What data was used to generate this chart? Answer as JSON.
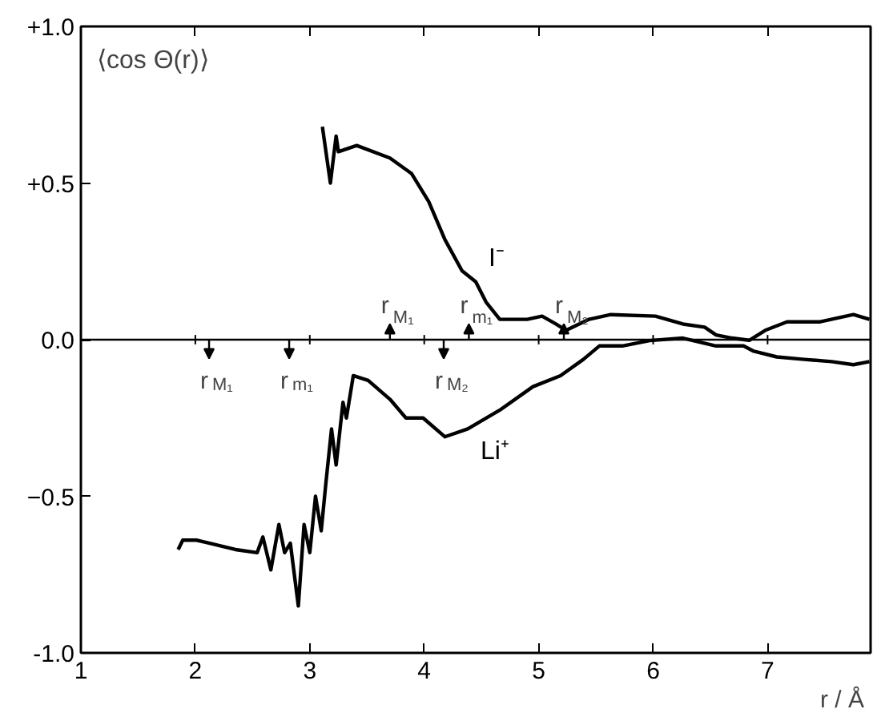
{
  "chart_data": {
    "type": "line",
    "xlabel": "r / Å",
    "ylabel": "⟨cos Θ(r)⟩",
    "xlim": [
      1,
      7.9
    ],
    "ylim": [
      -1,
      1
    ],
    "xticks": [
      1,
      2,
      3,
      4,
      5,
      6,
      7
    ],
    "yticks": [
      {
        "value": 1,
        "label": "+1.0"
      },
      {
        "value": 0.5,
        "label": "+0.5"
      },
      {
        "value": 0,
        "label": "0.0"
      },
      -0.5,
      {
        "value": -1,
        "label": "-1.0"
      }
    ],
    "grid": false,
    "marker": "none",
    "line_style": "solid",
    "ref_lines": [
      {
        "axis": "y",
        "value": 0,
        "color": "#000000"
      }
    ],
    "series": [
      {
        "name": "I⁻",
        "color": "#000000",
        "x": [
          3.11,
          3.18,
          3.23,
          3.25,
          3.41,
          3.7,
          3.89,
          4.04,
          4.18,
          4.33,
          4.45,
          4.54,
          4.66,
          4.9,
          5.03,
          5.15,
          5.24,
          5.44,
          5.63,
          6.02,
          6.26,
          6.45,
          6.55,
          6.69,
          6.84,
          6.98,
          7.17,
          7.46,
          7.75,
          7.89
        ],
        "values": [
          0.68,
          0.5,
          0.65,
          0.6,
          0.62,
          0.58,
          0.53,
          0.44,
          0.32,
          0.22,
          0.185,
          0.12,
          0.065,
          0.065,
          0.075,
          0.05,
          0.03,
          0.065,
          0.08,
          0.075,
          0.05,
          0.04,
          0.015,
          0.005,
          -0.002,
          0.03,
          0.057,
          0.057,
          0.08,
          0.065
        ]
      },
      {
        "name": "Li⁺",
        "color": "#000000",
        "x": [
          1.85,
          1.89,
          2.01,
          2.35,
          2.54,
          2.59,
          2.66,
          2.73,
          2.78,
          2.83,
          2.9,
          2.95,
          3.0,
          3.05,
          3.1,
          3.14,
          3.19,
          3.23,
          3.29,
          3.32,
          3.38,
          3.51,
          3.7,
          3.84,
          3.99,
          4.18,
          4.38,
          4.66,
          4.95,
          5.19,
          5.39,
          5.53,
          5.73,
          5.97,
          6.26,
          6.55,
          6.79,
          6.88,
          7.08,
          7.32,
          7.56,
          7.75,
          7.89
        ],
        "values": [
          -0.67,
          -0.64,
          -0.64,
          -0.67,
          -0.68,
          -0.63,
          -0.735,
          -0.59,
          -0.68,
          -0.65,
          -0.85,
          -0.59,
          -0.68,
          -0.5,
          -0.61,
          -0.46,
          -0.285,
          -0.4,
          -0.2,
          -0.25,
          -0.115,
          -0.13,
          -0.19,
          -0.25,
          -0.25,
          -0.31,
          -0.285,
          -0.225,
          -0.15,
          -0.115,
          -0.063,
          -0.02,
          -0.02,
          -0.003,
          0.005,
          -0.02,
          -0.02,
          -0.037,
          -0.055,
          -0.063,
          -0.07,
          -0.08,
          -0.07
        ]
      }
    ],
    "annotations": [
      {
        "text": "r$_{M₁}$",
        "x": 3.7,
        "y": 0
      },
      {
        "text": "r$_{m₁}$",
        "x": 4.39,
        "y": 0
      },
      {
        "text": "r$_{M₂}$",
        "x": 5.22,
        "y": 0
      },
      {
        "text": "r$_{M₁}$",
        "x": 2.12,
        "y": 0
      },
      {
        "text": "r$_{m₁}$",
        "x": 2.82,
        "y": 0
      },
      {
        "text": "r$_{M₂}$",
        "x": 4.17,
        "y": 0
      }
    ]
  }
}
